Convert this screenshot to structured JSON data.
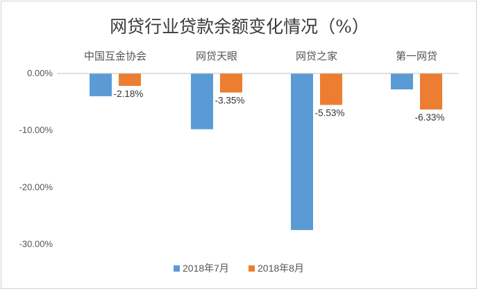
{
  "chart_data": {
    "type": "bar",
    "title": "网贷行业贷款余额变化情况（%）",
    "categories": [
      "中国互金协会",
      "网贷天眼",
      "网贷之家",
      "第一网贷"
    ],
    "series": [
      {
        "name": "2018年7月",
        "color": "#5b9bd5",
        "values": [
          -4.0,
          -9.8,
          -27.5,
          -2.8
        ]
      },
      {
        "name": "2018年8月",
        "color": "#ed7d31",
        "values": [
          -2.18,
          -3.35,
          -5.53,
          -6.33
        ],
        "data_labels": [
          "-2.18%",
          "-3.35%",
          "-5.53%",
          "-6.33%"
        ]
      }
    ],
    "y_ticks": [
      0,
      -10,
      -20,
      -30
    ],
    "y_tick_labels": [
      "0.00%",
      "-10.00%",
      "-20.00%",
      "-30.00%"
    ],
    "ylim": [
      -30,
      0
    ],
    "xlabel": "",
    "ylabel": "",
    "legend_position": "bottom",
    "gridlines": false
  }
}
